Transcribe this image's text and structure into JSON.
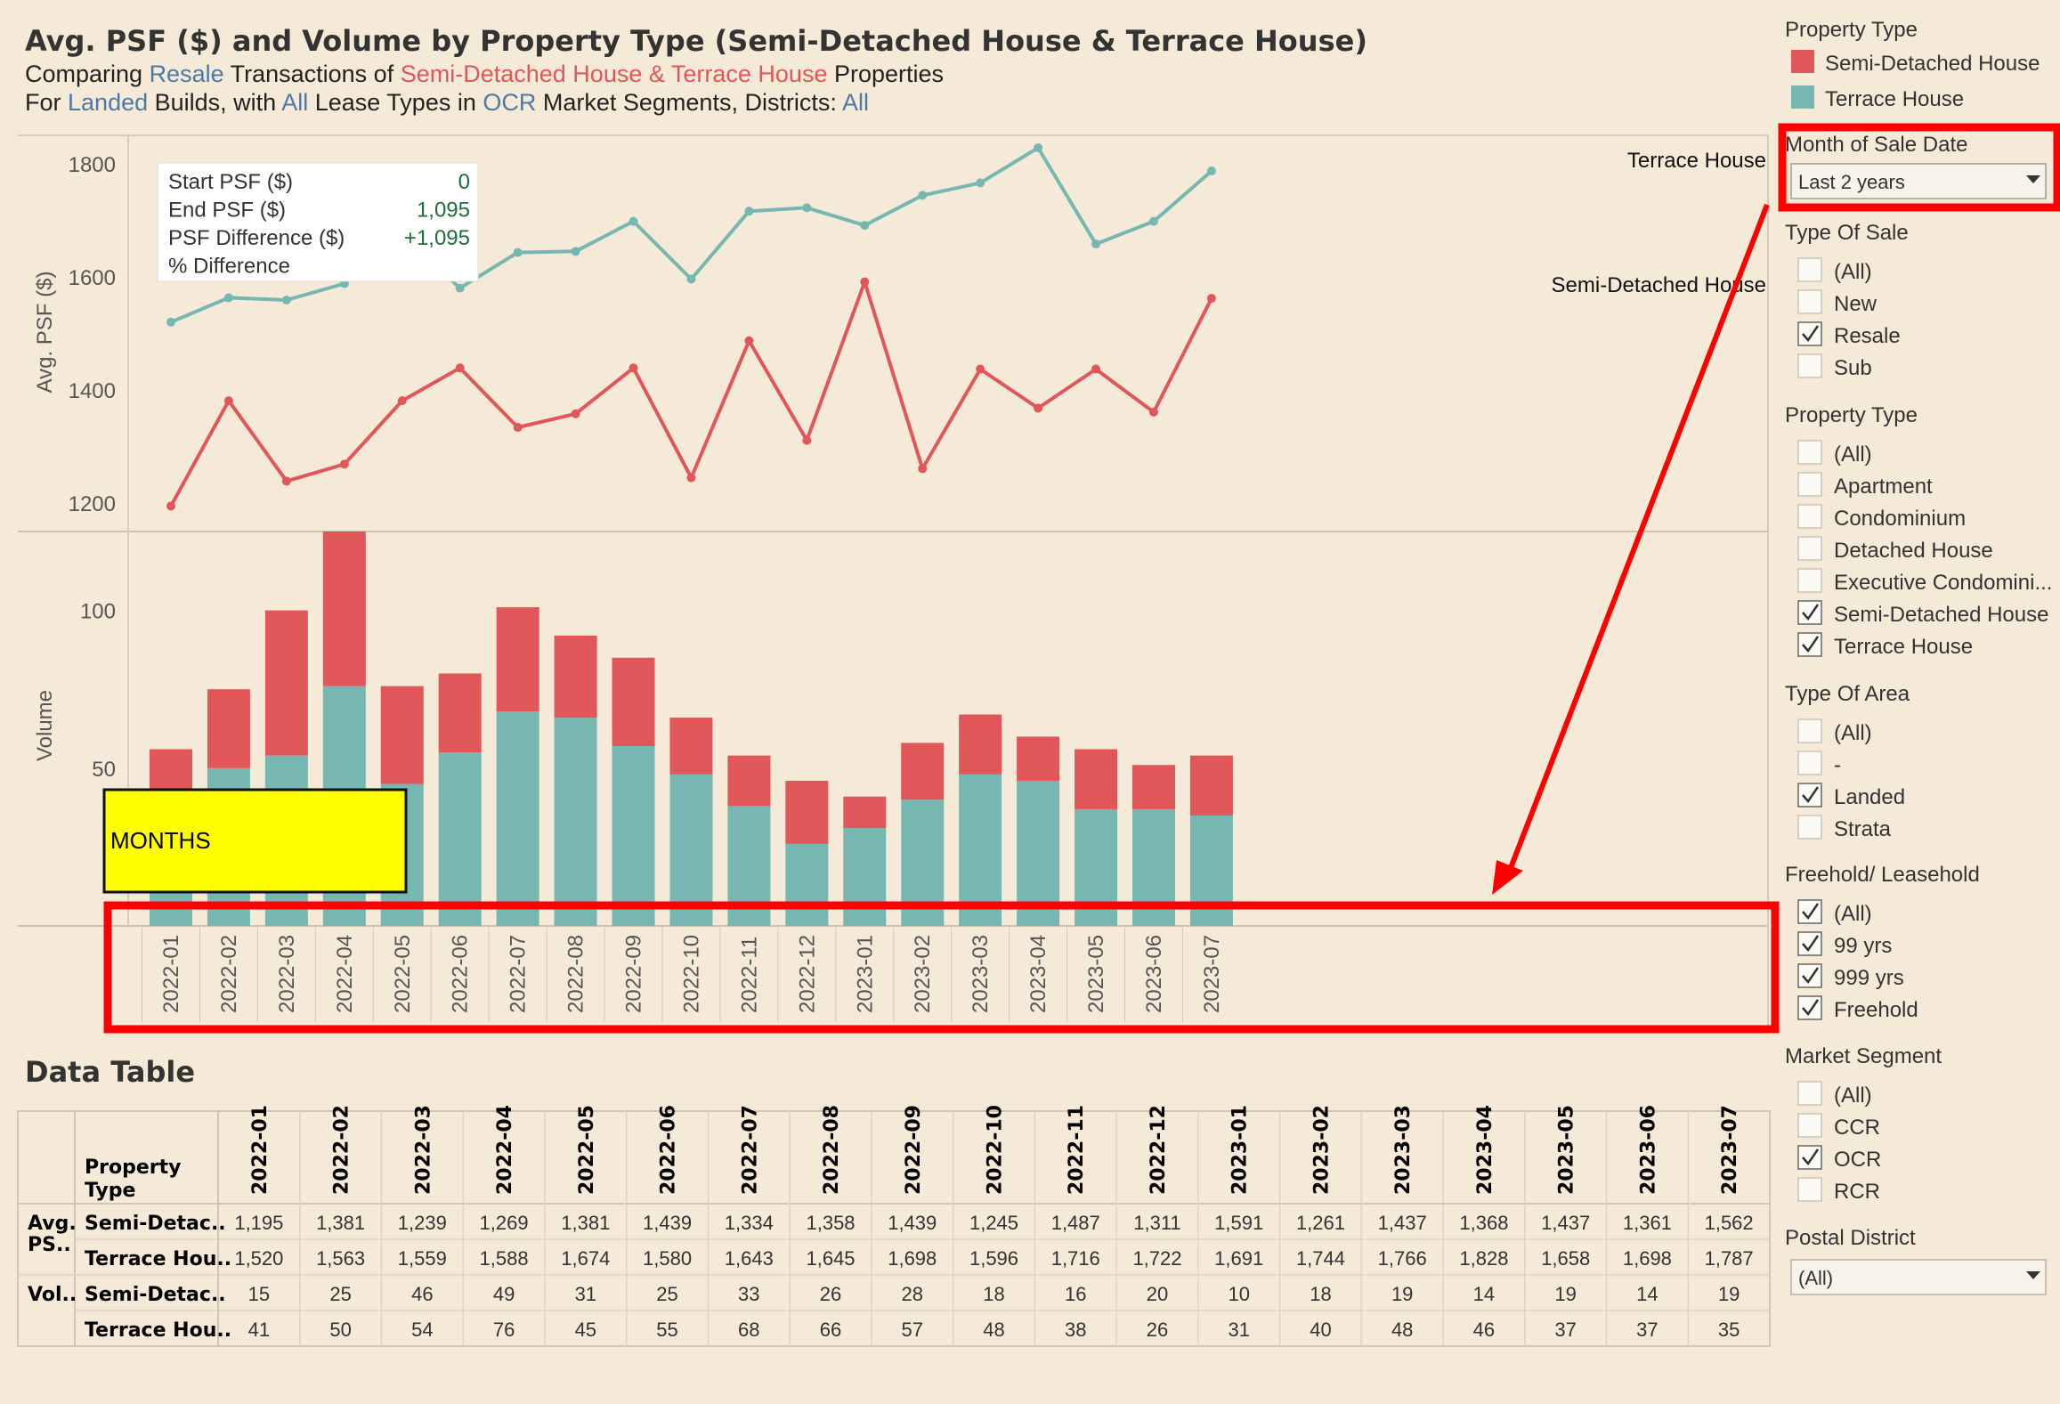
{
  "header": {
    "title": "Avg. PSF ($) and Volume by Property Type (Semi-Detached House & Terrace House)",
    "line1": [
      {
        "t": "Comparing ",
        "c": ""
      },
      {
        "t": "Resale",
        "c": "hl-blue"
      },
      {
        "t": " Transactions of ",
        "c": ""
      },
      {
        "t": "Semi-Detached House & Terrace House",
        "c": "hl-red"
      },
      {
        "t": " Properties",
        "c": ""
      }
    ],
    "line2": [
      {
        "t": "For ",
        "c": ""
      },
      {
        "t": "Landed",
        "c": "hl-blue"
      },
      {
        "t": " Builds, with ",
        "c": ""
      },
      {
        "t": "All",
        "c": "hl-blue"
      },
      {
        "t": " Lease Types in ",
        "c": ""
      },
      {
        "t": "OCR",
        "c": "hl-blue"
      },
      {
        "t": " Market Segments, Districts: ",
        "c": ""
      },
      {
        "t": "All",
        "c": "hl-blue"
      }
    ]
  },
  "colors": {
    "semi": "#e15759",
    "terrace": "#76b7b2",
    "background": "#f5e9d7",
    "annotation": "#ff0000",
    "note_fill": "#ffff00"
  },
  "chart_data": {
    "type": "line",
    "months": [
      "2022-01",
      "2022-02",
      "2022-03",
      "2022-04",
      "2022-05",
      "2022-06",
      "2022-07",
      "2022-08",
      "2022-09",
      "2022-10",
      "2022-11",
      "2022-12",
      "2023-01",
      "2023-02",
      "2023-03",
      "2023-04",
      "2023-05",
      "2023-06",
      "2023-07"
    ],
    "psf": {
      "ylabel": "Avg. PSF ($)",
      "ylim": [
        1150,
        1850
      ],
      "ticks": [
        1200,
        1400,
        1600,
        1800
      ],
      "series": [
        {
          "name": "Semi-Detached House",
          "values": [
            1195,
            1381,
            1239,
            1269,
            1381,
            1439,
            1334,
            1358,
            1439,
            1245,
            1487,
            1311,
            1591,
            1261,
            1437,
            1368,
            1437,
            1361,
            1562
          ]
        },
        {
          "name": "Terrace House",
          "values": [
            1520,
            1563,
            1559,
            1588,
            1674,
            1580,
            1643,
            1645,
            1698,
            1596,
            1716,
            1722,
            1691,
            1744,
            1766,
            1828,
            1658,
            1698,
            1787
          ]
        }
      ]
    },
    "volume": {
      "type": "bar",
      "stacked": true,
      "ylabel": "Volume",
      "ylim": [
        0,
        125
      ],
      "ticks": [
        50,
        100
      ],
      "series": [
        {
          "name": "Terrace House",
          "values": [
            41,
            50,
            54,
            76,
            45,
            55,
            68,
            66,
            57,
            48,
            38,
            26,
            31,
            40,
            48,
            46,
            37,
            37,
            35
          ]
        },
        {
          "name": "Semi-Detached House",
          "values": [
            15,
            25,
            46,
            49,
            31,
            25,
            33,
            26,
            28,
            18,
            16,
            20,
            10,
            18,
            19,
            14,
            19,
            14,
            19
          ]
        }
      ]
    }
  },
  "tooltip": {
    "rows": [
      {
        "label": "Start PSF ($)",
        "value": "0"
      },
      {
        "label": "End PSF ($)",
        "value": "1,095"
      },
      {
        "label": "PSF Difference ($)",
        "value": "+1,095"
      },
      {
        "label": "% Difference",
        "value": ""
      }
    ]
  },
  "annotation": {
    "note": "MONTHS"
  },
  "data_table": {
    "title": "Data Table",
    "property_type_header": [
      "Property",
      "Type"
    ],
    "months": [
      "2022-01",
      "2022-02",
      "2022-03",
      "2022-04",
      "2022-05",
      "2022-06",
      "2022-07",
      "2022-08",
      "2022-09",
      "2022-10",
      "2022-11",
      "2022-12",
      "2023-01",
      "2023-02",
      "2023-03",
      "2023-04",
      "2023-05",
      "2023-06",
      "2023-07"
    ],
    "groups": [
      {
        "label": [
          "Avg.",
          "PS.."
        ],
        "rows": [
          {
            "type": "Semi-Detac..",
            "values": [
              "1,195",
              "1,381",
              "1,239",
              "1,269",
              "1,381",
              "1,439",
              "1,334",
              "1,358",
              "1,439",
              "1,245",
              "1,487",
              "1,311",
              "1,591",
              "1,261",
              "1,437",
              "1,368",
              "1,437",
              "1,361",
              "1,562"
            ]
          },
          {
            "type": "Terrace Hou..",
            "values": [
              "1,520",
              "1,563",
              "1,559",
              "1,588",
              "1,674",
              "1,580",
              "1,643",
              "1,645",
              "1,698",
              "1,596",
              "1,716",
              "1,722",
              "1,691",
              "1,744",
              "1,766",
              "1,828",
              "1,658",
              "1,698",
              "1,787"
            ]
          }
        ]
      },
      {
        "label": [
          "Vol.."
        ],
        "rows": [
          {
            "type": "Semi-Detac..",
            "values": [
              "15",
              "25",
              "46",
              "49",
              "31",
              "25",
              "33",
              "26",
              "28",
              "18",
              "16",
              "20",
              "10",
              "18",
              "19",
              "14",
              "19",
              "14",
              "19"
            ]
          },
          {
            "type": "Terrace Hou..",
            "values": [
              "41",
              "50",
              "54",
              "76",
              "45",
              "55",
              "68",
              "66",
              "57",
              "48",
              "38",
              "26",
              "31",
              "40",
              "48",
              "46",
              "37",
              "37",
              "35"
            ]
          }
        ]
      }
    ]
  },
  "legend": {
    "title": "Property Type",
    "items": [
      {
        "label": "Semi-Detached House",
        "color": "#e15759"
      },
      {
        "label": "Terrace House",
        "color": "#76b7b2"
      }
    ]
  },
  "month_filter": {
    "title": "Month of Sale Date",
    "value": "Last 2 years"
  },
  "filters": [
    {
      "title": "Type Of Sale",
      "items": [
        {
          "label": "(All)",
          "checked": false
        },
        {
          "label": "New",
          "checked": false
        },
        {
          "label": "Resale",
          "checked": true
        },
        {
          "label": "Sub",
          "checked": false
        }
      ]
    },
    {
      "title": "Property Type",
      "items": [
        {
          "label": "(All)",
          "checked": false
        },
        {
          "label": "Apartment",
          "checked": false
        },
        {
          "label": "Condominium",
          "checked": false
        },
        {
          "label": "Detached House",
          "checked": false
        },
        {
          "label": "Executive Condomini...",
          "checked": false
        },
        {
          "label": "Semi-Detached House",
          "checked": true
        },
        {
          "label": "Terrace House",
          "checked": true
        }
      ]
    },
    {
      "title": "Type Of Area",
      "items": [
        {
          "label": "(All)",
          "checked": false
        },
        {
          "label": "-",
          "checked": false
        },
        {
          "label": "Landed",
          "checked": true
        },
        {
          "label": "Strata",
          "checked": false
        }
      ]
    },
    {
      "title": "Freehold/ Leasehold",
      "items": [
        {
          "label": "(All)",
          "checked": true
        },
        {
          "label": "99 yrs",
          "checked": true
        },
        {
          "label": "999 yrs",
          "checked": true
        },
        {
          "label": "Freehold",
          "checked": true
        }
      ]
    },
    {
      "title": "Market Segment",
      "items": [
        {
          "label": "(All)",
          "checked": false
        },
        {
          "label": "CCR",
          "checked": false
        },
        {
          "label": "OCR",
          "checked": true
        },
        {
          "label": "RCR",
          "checked": false
        }
      ]
    }
  ],
  "postal_filter": {
    "title": "Postal District",
    "value": "(All)"
  }
}
